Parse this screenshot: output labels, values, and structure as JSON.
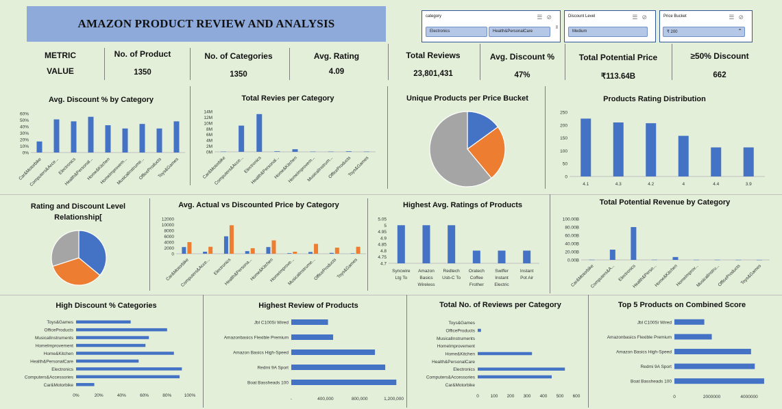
{
  "header": {
    "title": "AMAZON PRODUCT REVIEW AND ANALYSIS"
  },
  "slicers": {
    "category": {
      "label": "category",
      "items": [
        "Electronics",
        "Health&PersonalCare"
      ]
    },
    "discount": {
      "label": "Discount Level",
      "items": [
        "Medium"
      ]
    },
    "price": {
      "label": "Price Bucket",
      "items": [
        "₹ 200"
      ]
    }
  },
  "kpis": {
    "metric_label": "METRIC",
    "value_label": "VALUE",
    "items": [
      {
        "label": "No. of Product",
        "value": "1350"
      },
      {
        "label": "No. of Categories",
        "value": "1350"
      },
      {
        "label": "Avg. Rating",
        "value": "4.09"
      },
      {
        "label": "Total Reviews",
        "value": "23,801,431"
      },
      {
        "label": "Avg. Discount %",
        "value": "47%"
      },
      {
        "label": "Total Potential Price",
        "value": "₹113.64B"
      },
      {
        "label": "≥50% Discount",
        "value": "662"
      }
    ]
  },
  "colors": {
    "blue": "#4472c4",
    "orange": "#ed7d31",
    "gray": "#a5a5a5",
    "accent_header": "#8eaadb"
  },
  "chart_data": [
    {
      "id": "c1",
      "type": "bar",
      "title": "Avg. Discount % by Category",
      "categories": [
        "Car&Motorbike",
        "Computers&Acce...",
        "Electronics",
        "Health&Personal...",
        "Home&Kitchen",
        "HomeImprovem...",
        "MusicalInstrume...",
        "OfficeProducts",
        "Toys&Games"
      ],
      "values": [
        17,
        51,
        48,
        55,
        42,
        37,
        44,
        37,
        48
      ],
      "ylim": [
        0,
        60
      ],
      "yticks": [
        "0%",
        "10%",
        "20%",
        "30%",
        "40%",
        "50%",
        "60%"
      ]
    },
    {
      "id": "c2",
      "type": "bar",
      "title": "Total Revies per Category",
      "categories": [
        "Car&Motorbike",
        "Computers&Acce...",
        "Electronics",
        "Health&Personal...",
        "Home&Kitchen",
        "HomeImprovem...",
        "MusicalInstrum...",
        "OfficeProducts",
        "Toys&Games"
      ],
      "values": [
        0.1,
        9.1,
        13.1,
        0.2,
        0.9,
        0.1,
        0.1,
        0.2,
        0.1
      ],
      "ylim": [
        0,
        14
      ],
      "yticks": [
        "0M",
        "2M",
        "4M",
        "6M",
        "8M",
        "10M",
        "12M",
        "14M"
      ]
    },
    {
      "id": "c3",
      "type": "pie",
      "title": "Unique Products per Price Bucket",
      "values": [
        15,
        24,
        61
      ],
      "colors": [
        "#4472c4",
        "#ed7d31",
        "#a5a5a5"
      ]
    },
    {
      "id": "c4",
      "type": "bar",
      "title": "Products Rating Distribution",
      "categories": [
        "4.1",
        "4.3",
        "4.2",
        "4",
        "4.4",
        "3.9"
      ],
      "values": [
        225,
        210,
        207,
        158,
        113,
        113
      ],
      "ylim": [
        0,
        250
      ],
      "yticks": [
        "0",
        "50",
        "100",
        "150",
        "200",
        "250"
      ]
    },
    {
      "id": "c5",
      "type": "pie",
      "title": "Rating and Discount Level Relationship[",
      "values": [
        36,
        34,
        30
      ],
      "colors": [
        "#4472c4",
        "#ed7d31",
        "#a5a5a5"
      ]
    },
    {
      "id": "c6",
      "type": "bar",
      "title": "Avg. Actual vs Discounted Price by Category",
      "categories": [
        "Car&Motorbike",
        "Computers&Acce...",
        "Electronics",
        "Health&Persona...",
        "Home&Kitchen",
        "HomeImprove...",
        "MusicalInstrume...",
        "OfficeProducts",
        "Toys&Games"
      ],
      "series": [
        {
          "values": [
            2300,
            700,
            6000,
            900,
            2300,
            200,
            600,
            300,
            150
          ]
        },
        {
          "values": [
            4000,
            2400,
            9800,
            1900,
            4600,
            700,
            3400,
            2100,
            2400
          ]
        }
      ],
      "ylim": [
        0,
        12000
      ],
      "yticks": [
        "0",
        "2000",
        "4000",
        "6000",
        "8000",
        "10000",
        "12000"
      ]
    },
    {
      "id": "c7",
      "type": "bar",
      "title": "Highest Avg. Ratings of Products",
      "categories": [
        [
          "Syncwire",
          "Ltg To"
        ],
        [
          "Amazon",
          "Basics",
          "Wireless"
        ],
        [
          "Redtech",
          "Usb-C To"
        ],
        [
          "Oratech",
          "Coffee",
          "Frother"
        ],
        [
          "Swiffer",
          "Instant",
          "Electric"
        ],
        [
          "Instant",
          "Pot Air"
        ]
      ],
      "values": [
        5,
        5,
        5,
        4.8,
        4.8,
        4.8
      ],
      "ylim": [
        4.7,
        5.05
      ],
      "yticks": [
        "4.7",
        "4.75",
        "4.8",
        "4.85",
        "4.9",
        "4.95",
        "5",
        "5.05"
      ]
    },
    {
      "id": "c8",
      "type": "bar",
      "title": "Total Potential Revenue by Category",
      "categories": [
        "Car&Motorbike",
        "Computers&A...",
        "Electronics",
        "Health&Perso...",
        "Home&Kitchen",
        "HomeImprov...",
        "MusicalInstru...",
        "OfficeProducts",
        "Toys&Games"
      ],
      "values": [
        0.5,
        25,
        80,
        0.5,
        7,
        0.3,
        0.3,
        0.2,
        0.1
      ],
      "ylim": [
        0,
        100
      ],
      "yticks": [
        "0.00B",
        "20.00B",
        "40.00B",
        "60.00B",
        "80.00B",
        "100.00B"
      ]
    },
    {
      "id": "c9",
      "type": "bar",
      "orientation": "horizontal",
      "title": "High Discount % Categories",
      "categories": [
        "Toys&Games",
        "OfficeProducts",
        "MusicalInstruments",
        "HomeImprovement",
        "Home&Kitchen",
        "Health&PersonalCare",
        "Electronics",
        "Computers&Accessories",
        "Car&Motorbike"
      ],
      "values": [
        48,
        80,
        64,
        61,
        86,
        55,
        93,
        91,
        16
      ],
      "xlim": [
        0,
        100
      ],
      "xticks": [
        "0%",
        "20%",
        "40%",
        "60%",
        "80%",
        "100%"
      ]
    },
    {
      "id": "c10",
      "type": "bar",
      "orientation": "horizontal",
      "title": "Highest Review of Products",
      "categories": [
        "Jbl C100Si Wired",
        "Amazonbasics Flexible Premium",
        "Amazon Basics High-Speed",
        "Redmi 9A Sport",
        "Boat Bassheads 100"
      ],
      "values": [
        430000,
        490000,
        980000,
        1100000,
        1230000
      ],
      "xlim": [
        0,
        1300000
      ],
      "xticks": [
        "-",
        "400,000",
        "800,000",
        "1,200,000"
      ],
      "xtick_values": [
        0,
        400000,
        800000,
        1200000
      ]
    },
    {
      "id": "c11",
      "type": "bar",
      "orientation": "horizontal",
      "title": "Total No. of Reviews per Category",
      "categories": [
        "Toys&Games",
        "OfficeProducts",
        "MusicalInstruments",
        "HomeImprovement",
        "Home&Kitchen",
        "Health&PersonalCare",
        "Electronics",
        "Computers&Accessories",
        "Car&Motorbike"
      ],
      "values": [
        0,
        20,
        0,
        0,
        330,
        0,
        530,
        450,
        0
      ],
      "xlim": [
        0,
        600
      ],
      "xticks": [
        "0",
        "100",
        "200",
        "300",
        "400",
        "500",
        "600"
      ]
    },
    {
      "id": "c12",
      "type": "bar",
      "orientation": "horizontal",
      "title": "Top 5 Products on Combined Score",
      "categories": [
        "Jbl C100Si Wired",
        "Amazonbasics Flexible Premium",
        "Amazon Basics High-Speed",
        "Redmi 9A Sport",
        "Boat Bassheads 100"
      ],
      "values": [
        1600000,
        2000000,
        4100000,
        4300000,
        4800000
      ],
      "xlim": [
        0,
        5500000
      ],
      "xticks": [
        "0",
        "2000000",
        "4000000"
      ],
      "xtick_values": [
        0,
        2000000,
        4000000
      ]
    }
  ]
}
